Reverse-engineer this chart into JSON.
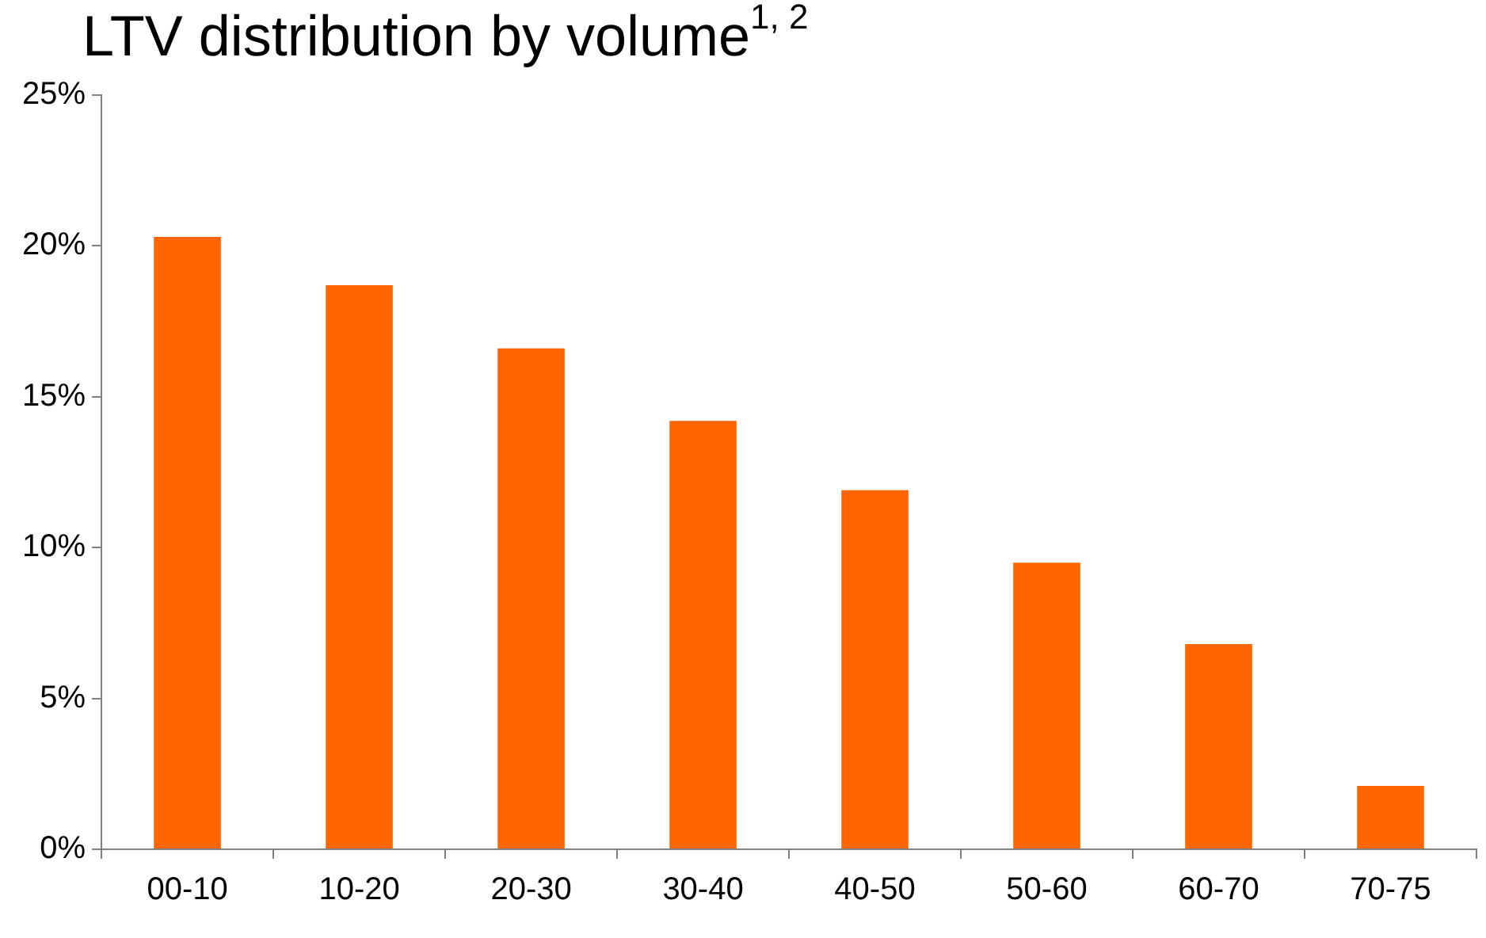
{
  "chart_data": {
    "type": "bar",
    "title": "LTV distribution by volume$^{1, 2}$",
    "categories": [
      "00-10",
      "10-20",
      "20-30",
      "30-40",
      "40-50",
      "50-60",
      "60-70",
      "70-75"
    ],
    "values": [
      20.3,
      18.7,
      16.6,
      14.2,
      11.9,
      9.5,
      6.8,
      2.1
    ],
    "color": "#ff6600",
    "ylim": [
      0,
      25
    ],
    "yticks": [
      {
        "value": 0,
        "label": "0%"
      },
      {
        "value": 5,
        "label": "5%"
      },
      {
        "value": 10,
        "label": "10%"
      },
      {
        "value": 15,
        "label": "15%"
      },
      {
        "value": 20,
        "label": "20%"
      },
      {
        "value": 25,
        "label": "25%"
      }
    ],
    "grid": false,
    "legend": false
  }
}
